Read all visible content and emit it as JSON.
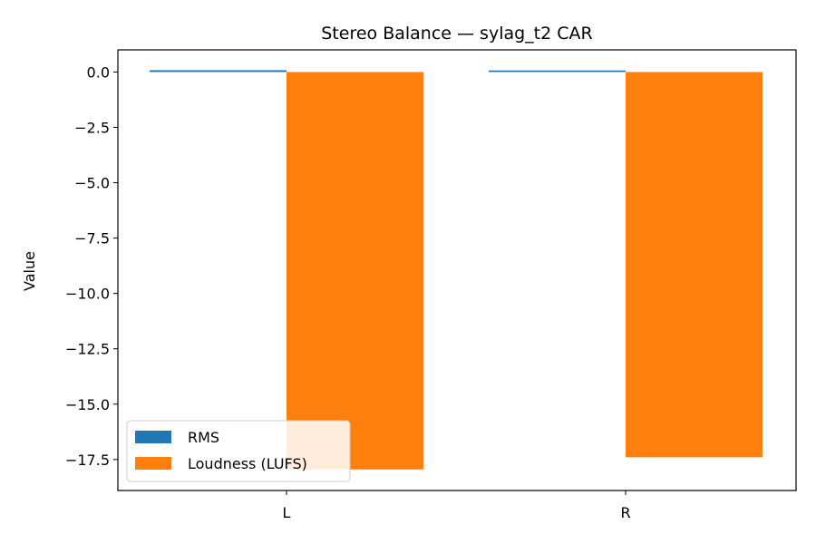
{
  "chart_data": {
    "type": "bar",
    "title": "Stereo Balance — sylag_t2 CAR",
    "xlabel": "",
    "ylabel": "Value",
    "categories": [
      "L",
      "R"
    ],
    "series": [
      {
        "name": "RMS",
        "color": "#1f77b4",
        "values": [
          0.08,
          0.07
        ]
      },
      {
        "name": "Loudness (LUFS)",
        "color": "#ff7f0e",
        "values": [
          -17.95,
          -17.4
        ]
      }
    ],
    "ylim": [
      -18.9,
      1.0
    ],
    "yticks": [
      0.0,
      -2.5,
      -5.0,
      -7.5,
      -10.0,
      -12.5,
      -15.0,
      -17.5
    ],
    "ytick_labels": [
      "0.0",
      "−2.5",
      "−5.0",
      "−7.5",
      "−10.0",
      "−12.5",
      "−15.0",
      "−17.5"
    ],
    "grid": false,
    "legend_position": "lower-left"
  }
}
